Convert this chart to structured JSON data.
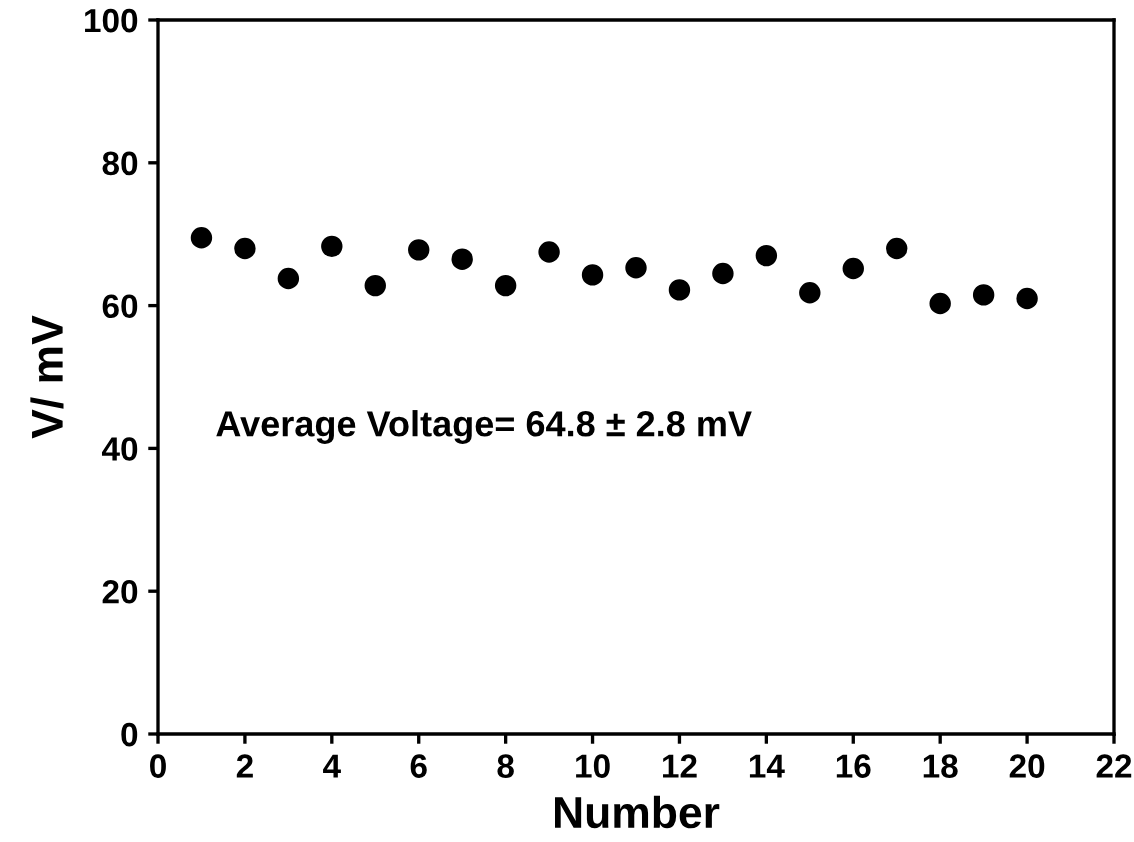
{
  "chart_data": {
    "type": "scatter",
    "xlabel": "Number",
    "ylabel": "V/ mV",
    "x": [
      1,
      2,
      3,
      4,
      5,
      6,
      7,
      8,
      9,
      10,
      11,
      12,
      13,
      14,
      15,
      16,
      17,
      18,
      19,
      20
    ],
    "values": [
      69.5,
      68,
      63.8,
      68.3,
      62.8,
      67.8,
      66.5,
      62.8,
      67.5,
      64.3,
      65.3,
      62.2,
      64.5,
      67,
      61.8,
      65.2,
      68,
      60.3,
      61.5,
      61
    ],
    "color": "#000000",
    "marker": "circle",
    "xlim": [
      0,
      22
    ],
    "xticks": [
      0,
      2,
      4,
      6,
      8,
      10,
      12,
      14,
      16,
      18,
      20,
      22
    ],
    "ylim": [
      0,
      100
    ],
    "yticks": [
      0,
      20,
      40,
      60,
      80,
      100
    ],
    "grid": false,
    "legend": false,
    "annotations": [
      "Average Voltage= 64.8 ± 2.8 mV"
    ]
  }
}
